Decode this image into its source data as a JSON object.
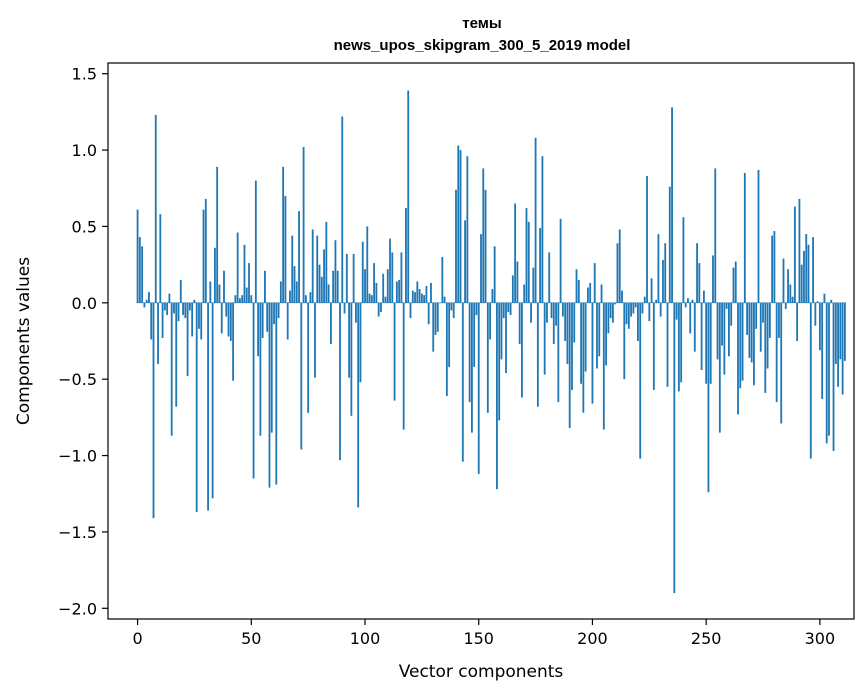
{
  "chart_data": {
    "type": "bar",
    "title": "темы",
    "subtitle": "news_upos_skipgram_300_5_2019 model",
    "xlabel": "Vector components",
    "ylabel": "Components values",
    "xlim": [
      -13,
      315
    ],
    "ylim": [
      -2.07,
      1.57
    ],
    "xticks": [
      0,
      50,
      100,
      150,
      200,
      250,
      300
    ],
    "yticks": [
      -2.0,
      -1.5,
      -1.0,
      -0.5,
      0.0,
      0.5,
      1.0,
      1.5
    ],
    "xtick_labels": [
      "0",
      "50",
      "100",
      "150",
      "200",
      "250",
      "300"
    ],
    "ytick_labels": [
      "−2.0",
      "−1.5",
      "−1.0",
      "−0.5",
      "0.0",
      "0.5",
      "1.0",
      "1.5"
    ],
    "grid": false,
    "bar_color": "#1f77b4",
    "values": [
      0.61,
      0.43,
      0.37,
      -0.03,
      0.02,
      0.07,
      -0.24,
      -1.41,
      1.23,
      -0.4,
      0.58,
      -0.23,
      -0.05,
      -0.08,
      0.06,
      -0.87,
      -0.07,
      -0.68,
      -0.12,
      0.15,
      -0.08,
      -0.1,
      -0.48,
      -0.05,
      -0.22,
      0.02,
      -1.37,
      -0.17,
      -0.24,
      0.61,
      0.68,
      -1.36,
      0.14,
      -1.28,
      0.36,
      0.89,
      0.12,
      -0.2,
      0.21,
      -0.09,
      -0.22,
      -0.25,
      -0.51,
      0.05,
      0.46,
      0.03,
      0.05,
      0.38,
      0.1,
      0.26,
      0.05,
      -1.15,
      0.8,
      -0.35,
      -0.87,
      -0.23,
      0.21,
      -0.19,
      -1.21,
      -0.85,
      -0.14,
      -1.19,
      -0.1,
      0.14,
      0.89,
      0.7,
      -0.24,
      0.08,
      0.44,
      0.24,
      0.14,
      0.6,
      -0.96,
      1.02,
      0.05,
      -0.72,
      0.07,
      0.48,
      -0.49,
      0.44,
      0.25,
      0.17,
      0.35,
      0.53,
      0.12,
      -0.27,
      0.21,
      0.41,
      0.21,
      -1.03,
      1.22,
      -0.07,
      0.32,
      -0.49,
      -0.74,
      0.32,
      -0.13,
      -1.34,
      -0.52,
      0.4,
      0.22,
      0.5,
      0.06,
      0.05,
      0.26,
      0.13,
      -0.09,
      -0.06,
      0.19,
      0.04,
      0.22,
      0.42,
      0.33,
      -0.64,
      0.14,
      0.15,
      0.33,
      -0.83,
      0.62,
      1.39,
      -0.1,
      0.08,
      0.07,
      0.14,
      0.09,
      0.06,
      0.05,
      0.11,
      -0.14,
      0.13,
      -0.32,
      -0.21,
      -0.19,
      0.0,
      0.3,
      0.04,
      -0.61,
      -0.42,
      -0.05,
      -0.1,
      0.74,
      1.03,
      1.0,
      -1.04,
      0.54,
      0.96,
      -0.65,
      -0.85,
      -0.42,
      -0.08,
      -1.12,
      0.45,
      0.88,
      0.74,
      -0.72,
      -0.24,
      0.09,
      0.37,
      -1.22,
      -0.77,
      -0.37,
      -0.1,
      -0.46,
      -0.06,
      -0.08,
      0.18,
      0.65,
      0.27,
      -0.27,
      -0.62,
      0.12,
      0.62,
      0.53,
      -0.13,
      0.23,
      1.08,
      -0.68,
      0.49,
      0.96,
      -0.47,
      -0.13,
      0.33,
      -0.1,
      -0.27,
      -0.15,
      -0.65,
      0.55,
      -0.09,
      -0.25,
      -0.4,
      -0.82,
      -0.57,
      -0.26,
      0.22,
      0.15,
      -0.53,
      -0.72,
      -0.45,
      0.1,
      0.13,
      -0.66,
      0.26,
      -0.43,
      -0.35,
      0.12,
      -0.83,
      -0.41,
      -0.2,
      -0.1,
      -0.13,
      -0.01,
      0.39,
      0.48,
      0.08,
      -0.5,
      -0.14,
      -0.17,
      -0.09,
      -0.07,
      -0.03,
      -0.25,
      -1.02,
      -0.07,
      0.04,
      0.83,
      -0.12,
      0.16,
      -0.57,
      0.02,
      0.45,
      -0.09,
      0.28,
      0.39,
      -0.55,
      0.76,
      1.28,
      -1.9,
      -0.11,
      -0.58,
      -0.52,
      0.56,
      -0.03,
      0.03,
      -0.2,
      0.02,
      -0.32,
      0.39,
      0.26,
      -0.44,
      0.08,
      -0.53,
      -1.24,
      -0.53,
      0.31,
      0.88,
      -0.37,
      -0.85,
      -0.28,
      -0.47,
      -0.04,
      -0.35,
      -0.15,
      0.23,
      0.27,
      -0.73,
      -0.56,
      -0.51,
      0.85,
      -0.21,
      -0.36,
      -0.39,
      -0.54,
      -0.17,
      0.87,
      -0.32,
      -0.13,
      -0.59,
      -0.43,
      -0.23,
      0.44,
      0.47,
      -0.65,
      -0.23,
      -0.79,
      0.29,
      -0.04,
      0.22,
      0.12,
      0.04,
      0.63,
      -0.25,
      0.68,
      0.25,
      0.34,
      0.45,
      0.38,
      -1.02,
      0.43,
      -0.15,
      0.01,
      -0.31,
      -0.63,
      0.06,
      -0.92,
      -0.87,
      0.02,
      -0.97,
      -0.4,
      -0.55,
      -0.37,
      -0.6,
      -0.38
    ]
  }
}
